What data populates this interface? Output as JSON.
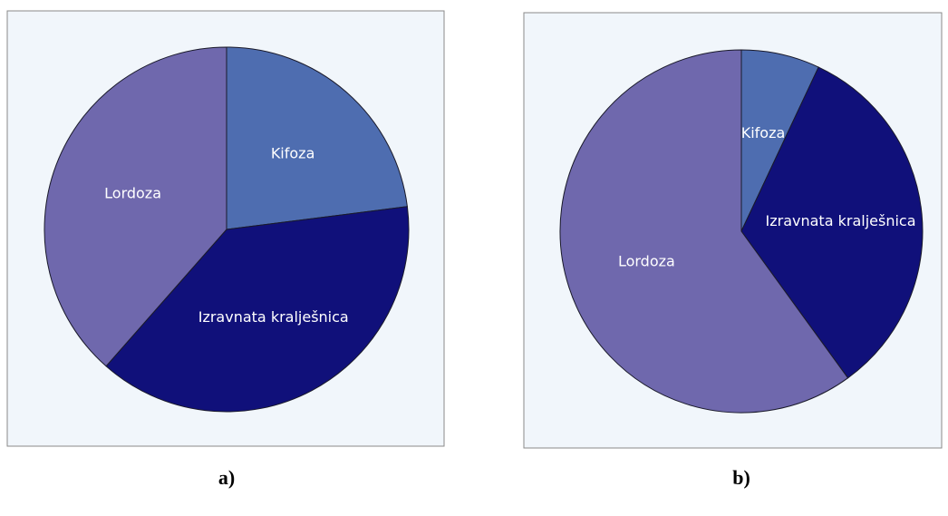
{
  "chart_data": [
    {
      "type": "pie",
      "caption": "a)",
      "categories": [
        "Kifoza",
        "Izravnata kralješnica",
        "Lordoza"
      ],
      "values": [
        23,
        38.5,
        38.5
      ],
      "colors": [
        "#4e6db0",
        "#10107a",
        "#6f68ad"
      ]
    },
    {
      "type": "pie",
      "caption": "b)",
      "categories": [
        "Kifoza",
        "Izravnata kralješnica",
        "Lordoza"
      ],
      "values": [
        7,
        33,
        60
      ],
      "colors": [
        "#4e6db0",
        "#10107a",
        "#6f68ad"
      ]
    }
  ]
}
